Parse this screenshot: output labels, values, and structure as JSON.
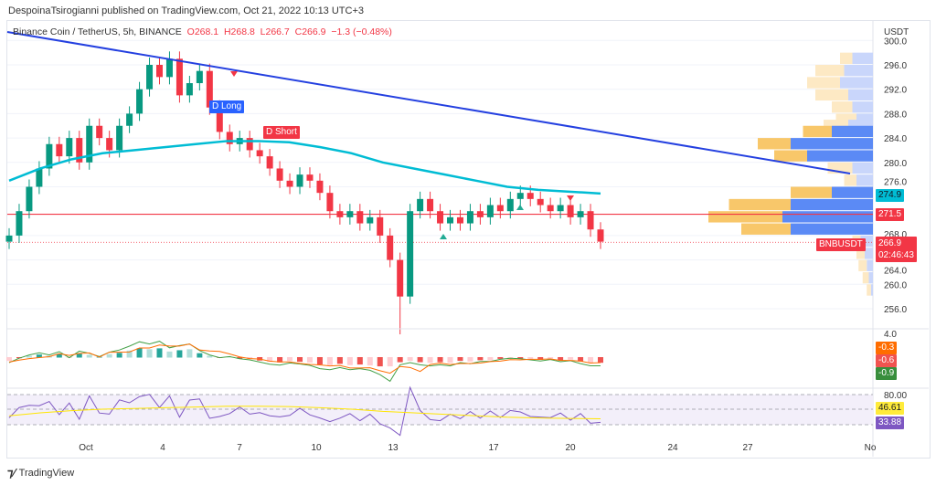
{
  "header": {
    "published": "DespoinaTsirogianni published on TradingView.com, Oct 21, 2022 10:13 UTC+3"
  },
  "legend": {
    "symbol": "Binance Coin / TetherUS, 5h, BINANCE",
    "o": "O268.1",
    "h": "H268.8",
    "l": "L266.7",
    "c": "C266.9",
    "chg": "−1.3 (−0.48%)"
  },
  "footer": {
    "brand": "TradingView"
  },
  "chart_data": {
    "type": "candlestick",
    "currency": "USDT",
    "ylim": [
      255,
      300
    ],
    "y_ticks": [
      "300.0",
      "296.0",
      "292.0",
      "288.0",
      "284.0",
      "280.0",
      "276.0",
      "268.0",
      "264.0",
      "260.0",
      "256.0"
    ],
    "x_ticks": [
      "Oct",
      "4",
      "7",
      "10",
      "13",
      "17",
      "20",
      "24",
      "27",
      "No"
    ],
    "closes": [
      268,
      272,
      276,
      279,
      283,
      281,
      284,
      280,
      286,
      284,
      282,
      286,
      288,
      292,
      296,
      294,
      297,
      291,
      293,
      295,
      289,
      285,
      283,
      284,
      282,
      281,
      279,
      277,
      276,
      278,
      277,
      275,
      272,
      271,
      272,
      270,
      271,
      268,
      264,
      258,
      272,
      274,
      272,
      270,
      271,
      270,
      272,
      271,
      273,
      272,
      274,
      275,
      274,
      273,
      272,
      273,
      271,
      272,
      269,
      267
    ],
    "ma": [
      277,
      279,
      280.5,
      281.5,
      282,
      282.5,
      283,
      283.5,
      283.5,
      283.3,
      282.5,
      281.5,
      280,
      279,
      278,
      277,
      276,
      275.5,
      275.2,
      274.9
    ],
    "trendline": {
      "from": [
        "Sep 28",
        303
      ],
      "to": [
        "Oct 31",
        278
      ]
    },
    "horizontal_line": 271.5,
    "labels": {
      "long": "D Long",
      "short": "D Short",
      "ticker": "BNBUSDT",
      "ma_value": "274.9",
      "line_value": "271.5",
      "last_price": "266.9",
      "countdown": "02:46:43"
    },
    "volume_profile": [
      {
        "price": 297,
        "buy": 0.03,
        "sell": 0.05
      },
      {
        "price": 295,
        "buy": 0.07,
        "sell": 0.07
      },
      {
        "price": 293,
        "buy": 0.08,
        "sell": 0.08
      },
      {
        "price": 291,
        "buy": 0.08,
        "sell": 0.06
      },
      {
        "price": 289,
        "buy": 0.05,
        "sell": 0.05
      },
      {
        "price": 287,
        "buy": 0.05,
        "sell": 0.04
      },
      {
        "price": 286,
        "buy": 0.06,
        "sell": 0.06
      },
      {
        "price": 285,
        "buy": 0.07,
        "sell": 0.1
      },
      {
        "price": 283,
        "buy": 0.08,
        "sell": 0.2
      },
      {
        "price": 281,
        "buy": 0.08,
        "sell": 0.16
      },
      {
        "price": 279,
        "buy": 0.06,
        "sell": 0.05
      },
      {
        "price": 277,
        "buy": 0.03,
        "sell": 0.04
      },
      {
        "price": 275,
        "buy": 0.1,
        "sell": 0.1
      },
      {
        "price": 273,
        "buy": 0.15,
        "sell": 0.2
      },
      {
        "price": 271,
        "buy": 0.18,
        "sell": 0.22
      },
      {
        "price": 269,
        "buy": 0.12,
        "sell": 0.2
      },
      {
        "price": 267,
        "buy": 0.02,
        "sell": 0.03
      },
      {
        "price": 265,
        "buy": 0.02,
        "sell": 0.02
      },
      {
        "price": 263,
        "buy": 0.02,
        "sell": 0.015
      },
      {
        "price": 261,
        "buy": 0.015,
        "sell": 0.01
      },
      {
        "price": 259,
        "buy": 0.01,
        "sell": 0.005
      }
    ],
    "macd": {
      "axis": "4.0",
      "values": [
        "-0.3",
        "-0.6",
        "-0.9"
      ],
      "colors": [
        "#ff6d00",
        "#f05350",
        "#388e3c"
      ]
    },
    "rsi": {
      "axis": "80.00",
      "values": [
        "46.61",
        "33.88"
      ],
      "colors": [
        "#ffeb3b",
        "#7e57c2"
      ]
    }
  },
  "colors": {
    "up": "#089981",
    "down": "#f23645",
    "ma": "#00bcd4",
    "trend": "#2440e0",
    "hline": "#f23645"
  }
}
